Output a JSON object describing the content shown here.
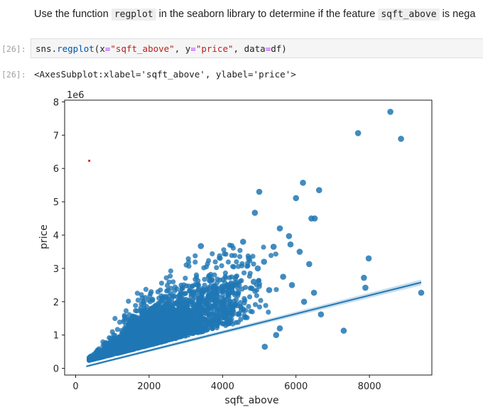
{
  "markdown": {
    "prefix": "Use the function ",
    "code1": "regplot",
    "middle": " in the seaborn library to determine if the feature ",
    "code2": "sqft_above",
    "suffix": " is nega"
  },
  "cell": {
    "in_prompt": "[26]:",
    "code_parts": [
      "sns",
      ".",
      "regplot",
      "(",
      "x",
      "=",
      "\"sqft_above\"",
      ", ",
      "y",
      "=",
      "\"price\"",
      ", ",
      "data",
      "=",
      "df",
      ")"
    ],
    "out_prompt": "[26]:",
    "output": "<AxesSubplot:xlabel='sqft_above', ylabel='price'>"
  },
  "chart_data": {
    "type": "scatter",
    "xlabel": "sqft_above",
    "ylabel": "price",
    "y_offset_label": "1e6",
    "xlim": [
      -300,
      9700
    ],
    "ylim": [
      -0.2,
      8.05
    ],
    "x_ticks": [
      0,
      2000,
      4000,
      6000,
      8000
    ],
    "x_tick_labels": [
      "0",
      "2000",
      "4000",
      "6000",
      "8000"
    ],
    "y_ticks": [
      0,
      1,
      2,
      3,
      4,
      5,
      6,
      7,
      8
    ],
    "y_tick_labels": [
      "0",
      "1",
      "2",
      "3",
      "4",
      "5",
      "6",
      "7",
      "8"
    ],
    "point_color": "#1f77b4",
    "outlier_color": "#d62728",
    "regression_line": {
      "x": [
        290,
        9410
      ],
      "y": [
        0.06,
        2.58
      ]
    },
    "outliers": [
      {
        "x": 8570,
        "y": 7.7
      },
      {
        "x": 7690,
        "y": 7.06
      },
      {
        "x": 8860,
        "y": 6.89
      },
      {
        "x": 6190,
        "y": 5.57
      },
      {
        "x": 6630,
        "y": 5.35
      },
      {
        "x": 5000,
        "y": 5.3
      },
      {
        "x": 6000,
        "y": 5.11
      },
      {
        "x": 4880,
        "y": 4.67
      },
      {
        "x": 6420,
        "y": 4.5
      },
      {
        "x": 6510,
        "y": 4.5
      },
      {
        "x": 5560,
        "y": 4.2
      },
      {
        "x": 5810,
        "y": 3.97
      },
      {
        "x": 3410,
        "y": 3.67
      },
      {
        "x": 4560,
        "y": 3.8
      },
      {
        "x": 5850,
        "y": 3.72
      },
      {
        "x": 6100,
        "y": 3.5
      },
      {
        "x": 5390,
        "y": 3.65
      },
      {
        "x": 7980,
        "y": 3.3
      },
      {
        "x": 6360,
        "y": 3.13
      },
      {
        "x": 7850,
        "y": 2.72
      },
      {
        "x": 7890,
        "y": 2.42
      },
      {
        "x": 9410,
        "y": 2.27
      },
      {
        "x": 6490,
        "y": 2.27
      },
      {
        "x": 7300,
        "y": 1.13
      },
      {
        "x": 6680,
        "y": 1.62
      },
      {
        "x": 6220,
        "y": 2.0
      },
      {
        "x": 5890,
        "y": 2.5
      },
      {
        "x": 5650,
        "y": 2.75
      },
      {
        "x": 5130,
        "y": 3.2
      },
      {
        "x": 5460,
        "y": 1.0
      },
      {
        "x": 5560,
        "y": 1.2
      },
      {
        "x": 5150,
        "y": 0.65
      },
      {
        "x": 4720,
        "y": 3.3
      },
      {
        "x": 4960,
        "y": 3.0
      },
      {
        "x": 4850,
        "y": 2.6
      },
      {
        "x": 5270,
        "y": 2.35
      }
    ],
    "red_point": {
      "x": 370,
      "y": 6.23
    }
  }
}
